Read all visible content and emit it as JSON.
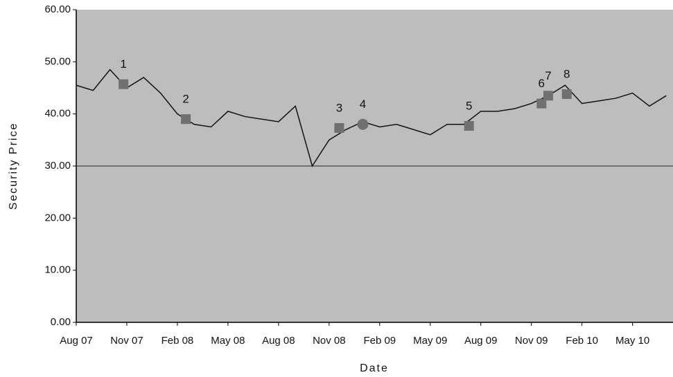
{
  "chart_data": {
    "type": "line",
    "x_label": "Date",
    "y_label": "Security Price",
    "x": [
      0,
      1,
      2,
      3,
      4,
      5,
      6,
      7,
      8,
      9,
      10,
      11,
      12,
      13,
      14,
      15,
      16,
      17,
      18,
      19,
      20,
      21,
      22,
      23,
      24,
      25,
      26,
      27,
      28,
      29,
      30,
      31,
      32,
      33,
      34,
      35
    ],
    "series": [
      {
        "name": "Security Price",
        "color": "#111111",
        "values": [
          45.5,
          44.5,
          48.5,
          45,
          47,
          44,
          40,
          38,
          37.5,
          40.5,
          39.5,
          39,
          38.5,
          41.5,
          30,
          35,
          37,
          38.5,
          37.5,
          38,
          37,
          36,
          38,
          38,
          40.5,
          40.5,
          41,
          42,
          43.5,
          45.5,
          42,
          42.5,
          43,
          44,
          41.5,
          43.5
        ]
      }
    ],
    "events": [
      {
        "label": "1",
        "x": 2.8,
        "y": 45.7,
        "shape": "square"
      },
      {
        "label": "2",
        "x": 6.5,
        "y": 39.0,
        "shape": "square"
      },
      {
        "label": "3",
        "x": 15.6,
        "y": 37.3,
        "shape": "square"
      },
      {
        "label": "4",
        "x": 17.0,
        "y": 38.0,
        "shape": "circle"
      },
      {
        "label": "5",
        "x": 23.3,
        "y": 37.7,
        "shape": "square"
      },
      {
        "label": "6",
        "x": 27.6,
        "y": 42.0,
        "shape": "square"
      },
      {
        "label": "7",
        "x": 28.0,
        "y": 43.5,
        "shape": "square"
      },
      {
        "label": "8",
        "x": 29.1,
        "y": 43.8,
        "shape": "square"
      }
    ],
    "event_color": "#707070",
    "hline": 30,
    "background": "#bdbdbd",
    "xlim": [
      0,
      35.4
    ],
    "xticks": [
      {
        "value": 0,
        "label": "Aug 07"
      },
      {
        "value": 3,
        "label": "Nov 07"
      },
      {
        "value": 6,
        "label": "Feb 08"
      },
      {
        "value": 9,
        "label": "May 08"
      },
      {
        "value": 12,
        "label": "Aug 08"
      },
      {
        "value": 15,
        "label": "Nov 08"
      },
      {
        "value": 18,
        "label": "Feb 09"
      },
      {
        "value": 21,
        "label": "May 09"
      },
      {
        "value": 24,
        "label": "Aug 09"
      },
      {
        "value": 27,
        "label": "Nov 09"
      },
      {
        "value": 30,
        "label": "Feb 10"
      },
      {
        "value": 33,
        "label": "May 10"
      }
    ],
    "ylim": [
      0,
      60
    ],
    "yticks": [
      {
        "value": 0,
        "label": "0.00"
      },
      {
        "value": 10,
        "label": "10.00"
      },
      {
        "value": 20,
        "label": "20.00"
      },
      {
        "value": 30,
        "label": "30.00"
      },
      {
        "value": 40,
        "label": "40.00"
      },
      {
        "value": 50,
        "label": "50.00"
      },
      {
        "value": 60,
        "label": "60.00"
      }
    ]
  }
}
